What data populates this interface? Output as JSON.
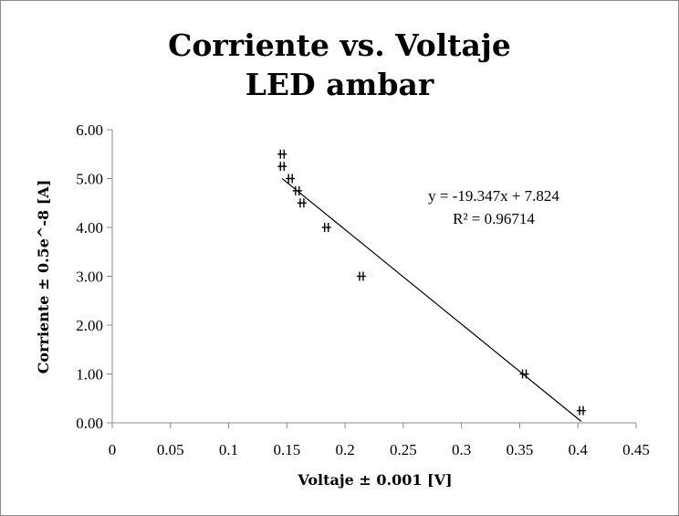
{
  "chart_data": {
    "type": "scatter",
    "title": [
      "Corriente vs. Voltaje",
      "LED ambar"
    ],
    "xlabel": "Voltaje ± 0.001 [V]",
    "ylabel": "Corriente ± 0.5e^-8 [A]",
    "xlim": [
      0,
      0.45
    ],
    "ylim": [
      0,
      6
    ],
    "xticks": [
      "0",
      "0.05",
      "0.1",
      "0.15",
      "0.2",
      "0.25",
      "0.3",
      "0.35",
      "0.4",
      "0.45"
    ],
    "yticks": [
      "0.00",
      "1.00",
      "2.00",
      "3.00",
      "4.00",
      "5.00",
      "6.00"
    ],
    "grid": false,
    "legend": "none",
    "series": [
      {
        "marker": "plus",
        "color": "#000000",
        "points": [
          {
            "x": 0.146,
            "y": 5.5
          },
          {
            "x": 0.146,
            "y": 5.25
          },
          {
            "x": 0.153,
            "y": 5.0
          },
          {
            "x": 0.159,
            "y": 4.75
          },
          {
            "x": 0.163,
            "y": 4.5
          },
          {
            "x": 0.184,
            "y": 4.0
          },
          {
            "x": 0.214,
            "y": 3.0
          },
          {
            "x": 0.354,
            "y": 1.0
          },
          {
            "x": 0.403,
            "y": 0.25
          }
        ]
      }
    ],
    "trendline": {
      "type": "linear",
      "slope": -19.347,
      "intercept": 7.824,
      "x_range": [
        0.146,
        0.403
      ],
      "color": "#000000",
      "equation": "y = -19.347x + 7.824",
      "r_squared": "R² = 0.96714"
    }
  }
}
